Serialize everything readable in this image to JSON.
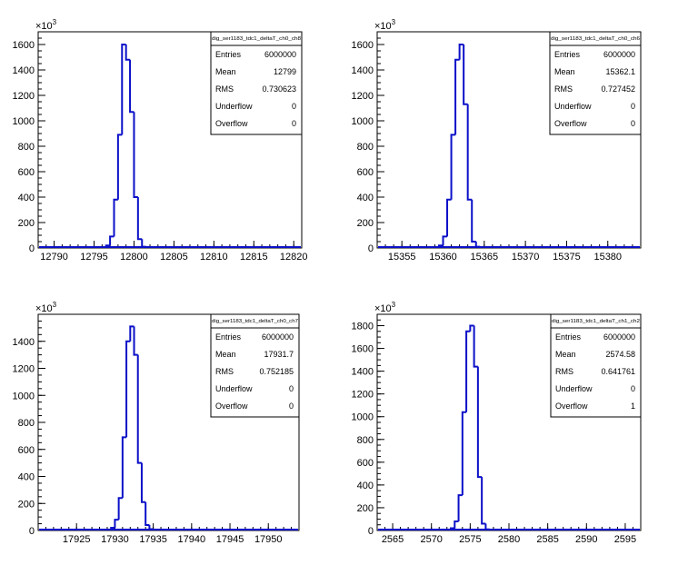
{
  "chart_data": [
    {
      "type": "bar",
      "title": "dig_ser1183_tdc1_deltaT_ch0_ch8",
      "exponent_label": "×10",
      "exponent": "3",
      "xlim": [
        12788,
        12821
      ],
      "ylim": [
        0,
        1700
      ],
      "xticks": [
        "12790",
        "12795",
        "12800",
        "12805",
        "12810",
        "12815",
        "12820"
      ],
      "yticks": [
        "0",
        "200",
        "400",
        "600",
        "800",
        "1000",
        "1200",
        "1400",
        "1600"
      ],
      "bin_width": 0.5,
      "bins": [
        {
          "x": 12796.5,
          "y": 20
        },
        {
          "x": 12797.0,
          "y": 90
        },
        {
          "x": 12797.5,
          "y": 380
        },
        {
          "x": 12798.0,
          "y": 890
        },
        {
          "x": 12798.5,
          "y": 1600
        },
        {
          "x": 12799.0,
          "y": 1480
        },
        {
          "x": 12799.5,
          "y": 1070
        },
        {
          "x": 12800.0,
          "y": 400
        },
        {
          "x": 12800.5,
          "y": 70
        },
        {
          "x": 12801.0,
          "y": 10
        }
      ],
      "stats": [
        {
          "label": "Entries",
          "value": "6000000"
        },
        {
          "label": "Mean",
          "value": "12799"
        },
        {
          "label": "RMS",
          "value": "0.730623"
        },
        {
          "label": "Underflow",
          "value": "0"
        },
        {
          "label": "Overflow",
          "value": "0"
        }
      ],
      "grid": false,
      "line_color": "#0b10c8"
    },
    {
      "type": "bar",
      "title": "dig_ser1183_tdc1_deltaT_ch0_ch6",
      "exponent_label": "×10",
      "exponent": "3",
      "xlim": [
        15352,
        15384
      ],
      "ylim": [
        0,
        1700
      ],
      "xticks": [
        "15355",
        "15360",
        "15365",
        "15370",
        "15375",
        "15380"
      ],
      "yticks": [
        "0",
        "200",
        "400",
        "600",
        "800",
        "1000",
        "1200",
        "1400",
        "1600"
      ],
      "bin_width": 0.5,
      "bins": [
        {
          "x": 15359.5,
          "y": 20
        },
        {
          "x": 15360.0,
          "y": 90
        },
        {
          "x": 15360.5,
          "y": 380
        },
        {
          "x": 15361.0,
          "y": 890
        },
        {
          "x": 15361.5,
          "y": 1480
        },
        {
          "x": 15362.0,
          "y": 1600
        },
        {
          "x": 15362.5,
          "y": 1130
        },
        {
          "x": 15363.0,
          "y": 380
        },
        {
          "x": 15363.5,
          "y": 50
        },
        {
          "x": 15364.0,
          "y": 10
        }
      ],
      "stats": [
        {
          "label": "Entries",
          "value": "6000000"
        },
        {
          "label": "Mean",
          "value": "15362.1"
        },
        {
          "label": "RMS",
          "value": "0.727452"
        },
        {
          "label": "Underflow",
          "value": "0"
        },
        {
          "label": "Overflow",
          "value": "0"
        }
      ],
      "grid": false,
      "line_color": "#0b10c8"
    },
    {
      "type": "bar",
      "title": "dig_ser1183_tdc1_deltaT_ch0_ch7",
      "exponent_label": "×10",
      "exponent": "3",
      "xlim": [
        17920,
        17954
      ],
      "ylim": [
        0,
        1600
      ],
      "xticks": [
        "17925",
        "17930",
        "17935",
        "17940",
        "17945",
        "17950"
      ],
      "yticks": [
        "0",
        "200",
        "400",
        "600",
        "800",
        "1000",
        "1200",
        "1400"
      ],
      "bin_width": 0.5,
      "bins": [
        {
          "x": 17929.5,
          "y": 20
        },
        {
          "x": 17930.0,
          "y": 80
        },
        {
          "x": 17930.5,
          "y": 240
        },
        {
          "x": 17931.0,
          "y": 690
        },
        {
          "x": 17931.5,
          "y": 1400
        },
        {
          "x": 17932.0,
          "y": 1510
        },
        {
          "x": 17932.5,
          "y": 1300
        },
        {
          "x": 17933.0,
          "y": 500
        },
        {
          "x": 17933.5,
          "y": 210
        },
        {
          "x": 17934.0,
          "y": 40
        },
        {
          "x": 17934.5,
          "y": 10
        }
      ],
      "stats": [
        {
          "label": "Entries",
          "value": "6000000"
        },
        {
          "label": "Mean",
          "value": "17931.7"
        },
        {
          "label": "RMS",
          "value": "0.752185"
        },
        {
          "label": "Underflow",
          "value": "0"
        },
        {
          "label": "Overflow",
          "value": "0"
        }
      ],
      "grid": false,
      "line_color": "#0b10c8"
    },
    {
      "type": "bar",
      "title": "dig_ser1183_tdc1_deltaT_ch1_ch2",
      "exponent_label": "×10",
      "exponent": "3",
      "xlim": [
        2563,
        2597
      ],
      "ylim": [
        0,
        1900
      ],
      "xticks": [
        "2565",
        "2570",
        "2575",
        "2580",
        "2585",
        "2590",
        "2595"
      ],
      "yticks": [
        "0",
        "200",
        "400",
        "600",
        "800",
        "1000",
        "1200",
        "1400",
        "1600",
        "1800"
      ],
      "bin_width": 0.5,
      "bins": [
        {
          "x": 2572.5,
          "y": 20
        },
        {
          "x": 2573.0,
          "y": 80
        },
        {
          "x": 2573.5,
          "y": 310
        },
        {
          "x": 2574.0,
          "y": 1040
        },
        {
          "x": 2574.5,
          "y": 1750
        },
        {
          "x": 2575.0,
          "y": 1800
        },
        {
          "x": 2575.5,
          "y": 1440
        },
        {
          "x": 2576.0,
          "y": 470
        },
        {
          "x": 2576.5,
          "y": 60
        },
        {
          "x": 2577.0,
          "y": 10
        }
      ],
      "stats": [
        {
          "label": "Entries",
          "value": "6000000"
        },
        {
          "label": "Mean",
          "value": "2574.58"
        },
        {
          "label": "RMS",
          "value": "0.641761"
        },
        {
          "label": "Underflow",
          "value": "0"
        },
        {
          "label": "Overflow",
          "value": "1"
        }
      ],
      "grid": false,
      "line_color": "#0b10c8"
    }
  ]
}
